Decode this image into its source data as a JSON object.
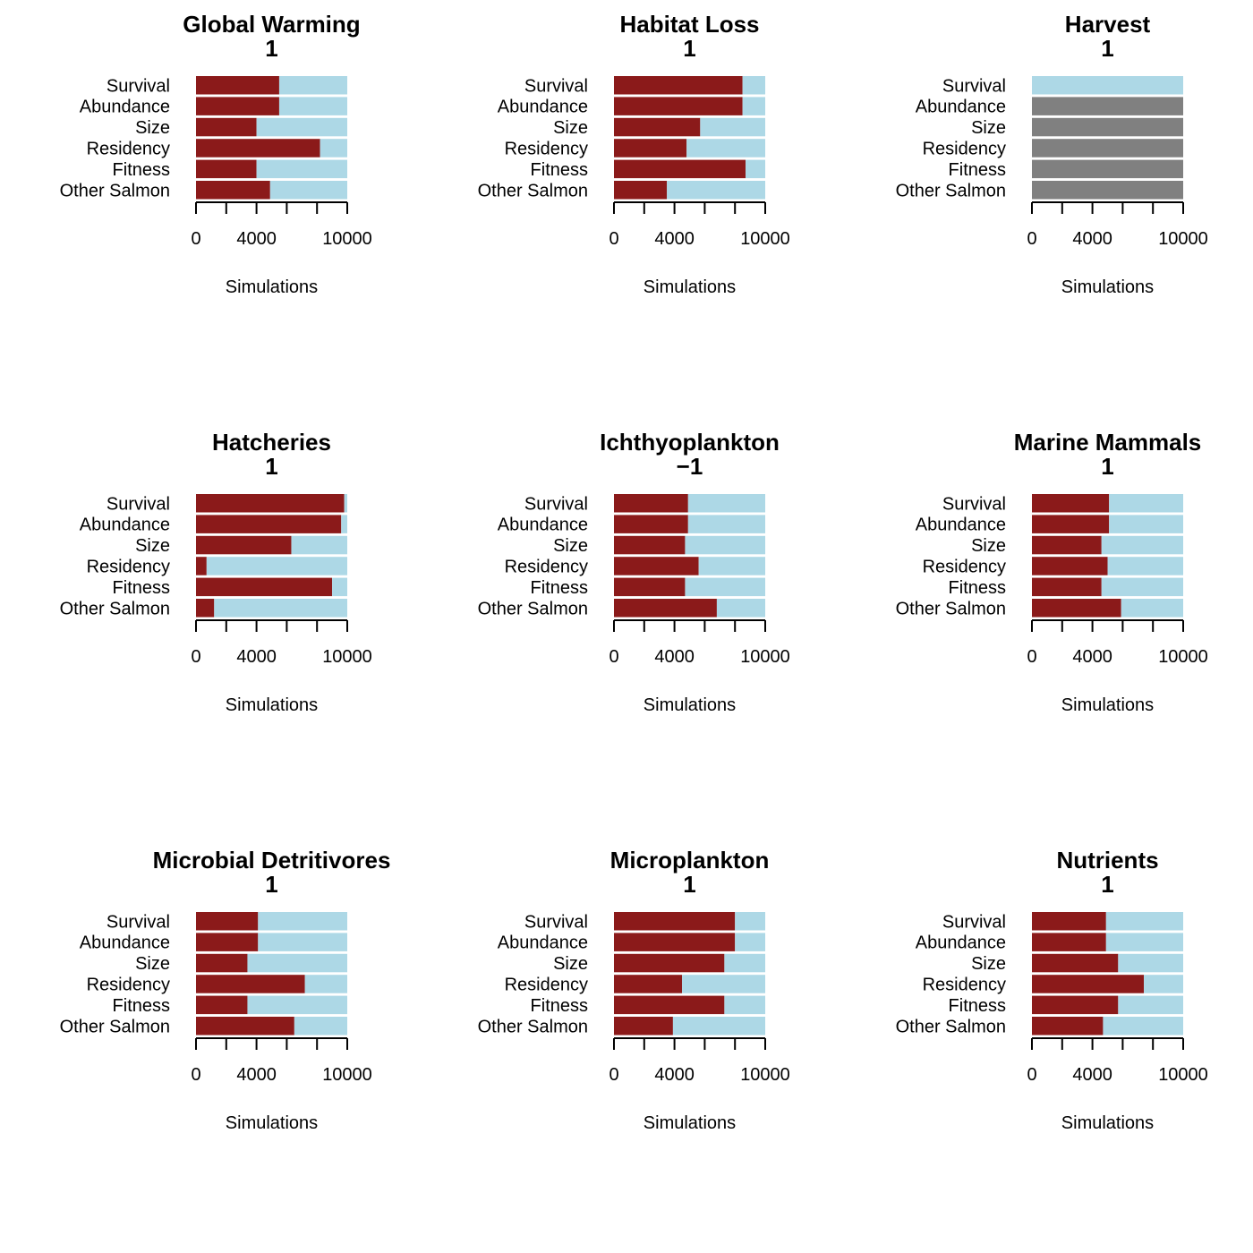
{
  "chart_data": [
    {
      "type": "bar",
      "orientation": "horizontal",
      "stacked": true,
      "title": "Global Warming",
      "subtitle": "1",
      "xlabel": "Simulations",
      "ylabel": "",
      "xlim": [
        0,
        10000
      ],
      "xticks": [
        0,
        4000,
        10000
      ],
      "categories": [
        "Survival",
        "Abundance",
        "Size",
        "Residency",
        "Fitness",
        "Other Salmon"
      ],
      "series": [
        {
          "color": "#8b1a1a",
          "values": [
            5500,
            5500,
            4000,
            8200,
            4000,
            4900
          ]
        },
        {
          "color": "#add8e6",
          "values": [
            4500,
            4500,
            6000,
            1800,
            6000,
            5100
          ]
        },
        {
          "color": "#808080",
          "values": [
            0,
            0,
            0,
            0,
            0,
            0
          ]
        }
      ]
    },
    {
      "type": "bar",
      "orientation": "horizontal",
      "stacked": true,
      "title": "Habitat Loss",
      "subtitle": "1",
      "xlabel": "Simulations",
      "ylabel": "",
      "xlim": [
        0,
        10000
      ],
      "xticks": [
        0,
        4000,
        10000
      ],
      "categories": [
        "Survival",
        "Abundance",
        "Size",
        "Residency",
        "Fitness",
        "Other Salmon"
      ],
      "series": [
        {
          "color": "#8b1a1a",
          "values": [
            8500,
            8500,
            5700,
            4800,
            8700,
            3500
          ]
        },
        {
          "color": "#add8e6",
          "values": [
            1500,
            1500,
            4300,
            5200,
            1300,
            6500
          ]
        },
        {
          "color": "#808080",
          "values": [
            0,
            0,
            0,
            0,
            0,
            0
          ]
        }
      ]
    },
    {
      "type": "bar",
      "orientation": "horizontal",
      "stacked": true,
      "title": "Harvest",
      "subtitle": "1",
      "xlabel": "Simulations",
      "ylabel": "",
      "xlim": [
        0,
        10000
      ],
      "xticks": [
        0,
        4000,
        10000
      ],
      "categories": [
        "Survival",
        "Abundance",
        "Size",
        "Residency",
        "Fitness",
        "Other Salmon"
      ],
      "series": [
        {
          "color": "#8b1a1a",
          "values": [
            0,
            0,
            0,
            0,
            0,
            0
          ]
        },
        {
          "color": "#add8e6",
          "values": [
            10000,
            0,
            0,
            0,
            0,
            0
          ]
        },
        {
          "color": "#808080",
          "values": [
            0,
            10000,
            10000,
            10000,
            10000,
            10000
          ]
        }
      ]
    },
    {
      "type": "bar",
      "orientation": "horizontal",
      "stacked": true,
      "title": "Hatcheries",
      "subtitle": "1",
      "xlabel": "Simulations",
      "ylabel": "",
      "xlim": [
        0,
        10000
      ],
      "xticks": [
        0,
        4000,
        10000
      ],
      "categories": [
        "Survival",
        "Abundance",
        "Size",
        "Residency",
        "Fitness",
        "Other Salmon"
      ],
      "series": [
        {
          "color": "#8b1a1a",
          "values": [
            9800,
            9600,
            6300,
            700,
            9000,
            1200
          ]
        },
        {
          "color": "#add8e6",
          "values": [
            200,
            400,
            3700,
            9300,
            1000,
            8800
          ]
        },
        {
          "color": "#808080",
          "values": [
            0,
            0,
            0,
            0,
            0,
            0
          ]
        }
      ]
    },
    {
      "type": "bar",
      "orientation": "horizontal",
      "stacked": true,
      "title": "Ichthyoplankton",
      "subtitle": "−1",
      "xlabel": "Simulations",
      "ylabel": "",
      "xlim": [
        0,
        10000
      ],
      "xticks": [
        0,
        4000,
        10000
      ],
      "categories": [
        "Survival",
        "Abundance",
        "Size",
        "Residency",
        "Fitness",
        "Other Salmon"
      ],
      "series": [
        {
          "color": "#8b1a1a",
          "values": [
            4900,
            4900,
            4700,
            5600,
            4700,
            6800
          ]
        },
        {
          "color": "#add8e6",
          "values": [
            5100,
            5100,
            5300,
            4400,
            5300,
            3200
          ]
        },
        {
          "color": "#808080",
          "values": [
            0,
            0,
            0,
            0,
            0,
            0
          ]
        }
      ]
    },
    {
      "type": "bar",
      "orientation": "horizontal",
      "stacked": true,
      "title": "Marine Mammals",
      "subtitle": "1",
      "xlabel": "Simulations",
      "ylabel": "",
      "xlim": [
        0,
        10000
      ],
      "xticks": [
        0,
        4000,
        10000
      ],
      "categories": [
        "Survival",
        "Abundance",
        "Size",
        "Residency",
        "Fitness",
        "Other Salmon"
      ],
      "series": [
        {
          "color": "#8b1a1a",
          "values": [
            5100,
            5100,
            4600,
            5000,
            4600,
            5900
          ]
        },
        {
          "color": "#add8e6",
          "values": [
            4900,
            4900,
            5400,
            5000,
            5400,
            4100
          ]
        },
        {
          "color": "#808080",
          "values": [
            0,
            0,
            0,
            0,
            0,
            0
          ]
        }
      ]
    },
    {
      "type": "bar",
      "orientation": "horizontal",
      "stacked": true,
      "title": "Microbial Detritivores",
      "subtitle": "1",
      "xlabel": "Simulations",
      "ylabel": "",
      "xlim": [
        0,
        10000
      ],
      "xticks": [
        0,
        4000,
        10000
      ],
      "categories": [
        "Survival",
        "Abundance",
        "Size",
        "Residency",
        "Fitness",
        "Other Salmon"
      ],
      "series": [
        {
          "color": "#8b1a1a",
          "values": [
            4100,
            4100,
            3400,
            7200,
            3400,
            6500
          ]
        },
        {
          "color": "#add8e6",
          "values": [
            5900,
            5900,
            6600,
            2800,
            6600,
            3500
          ]
        },
        {
          "color": "#808080",
          "values": [
            0,
            0,
            0,
            0,
            0,
            0
          ]
        }
      ]
    },
    {
      "type": "bar",
      "orientation": "horizontal",
      "stacked": true,
      "title": "Microplankton",
      "subtitle": "1",
      "xlabel": "Simulations",
      "ylabel": "",
      "xlim": [
        0,
        10000
      ],
      "xticks": [
        0,
        4000,
        10000
      ],
      "categories": [
        "Survival",
        "Abundance",
        "Size",
        "Residency",
        "Fitness",
        "Other Salmon"
      ],
      "series": [
        {
          "color": "#8b1a1a",
          "values": [
            8000,
            8000,
            7300,
            4500,
            7300,
            3900
          ]
        },
        {
          "color": "#add8e6",
          "values": [
            2000,
            2000,
            2700,
            5500,
            2700,
            6100
          ]
        },
        {
          "color": "#808080",
          "values": [
            0,
            0,
            0,
            0,
            0,
            0
          ]
        }
      ]
    },
    {
      "type": "bar",
      "orientation": "horizontal",
      "stacked": true,
      "title": "Nutrients",
      "subtitle": "1",
      "xlabel": "Simulations",
      "ylabel": "",
      "xlim": [
        0,
        10000
      ],
      "xticks": [
        0,
        4000,
        10000
      ],
      "categories": [
        "Survival",
        "Abundance",
        "Size",
        "Residency",
        "Fitness",
        "Other Salmon"
      ],
      "series": [
        {
          "color": "#8b1a1a",
          "values": [
            4900,
            4900,
            5700,
            7400,
            5700,
            4700
          ]
        },
        {
          "color": "#add8e6",
          "values": [
            5100,
            5100,
            4300,
            2600,
            4300,
            5300
          ]
        },
        {
          "color": "#808080",
          "values": [
            0,
            0,
            0,
            0,
            0,
            0
          ]
        }
      ]
    }
  ]
}
